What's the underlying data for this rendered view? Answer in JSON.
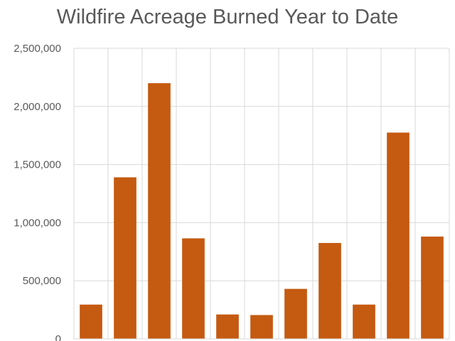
{
  "chart_data": {
    "type": "bar",
    "title": "Wildfire Acreage Burned Year to Date",
    "xlabel": "",
    "ylabel": "",
    "ylim": [
      0,
      2500000
    ],
    "yticks": [
      0,
      500000,
      1000000,
      1500000,
      2000000,
      2500000
    ],
    "ytick_labels": [
      "0",
      "500,000",
      "1,000,000",
      "1,500,000",
      "2,000,000",
      "2,500,000"
    ],
    "categories": [
      "",
      "",
      "",
      "",
      "",
      "",
      "",
      "",
      "",
      "",
      ""
    ],
    "values": [
      295000,
      1390000,
      2200000,
      865000,
      210000,
      205000,
      430000,
      825000,
      295000,
      1775000,
      880000
    ],
    "grid": true,
    "bar_color": "#c55a11",
    "grid_color": "#d9d9d9"
  }
}
